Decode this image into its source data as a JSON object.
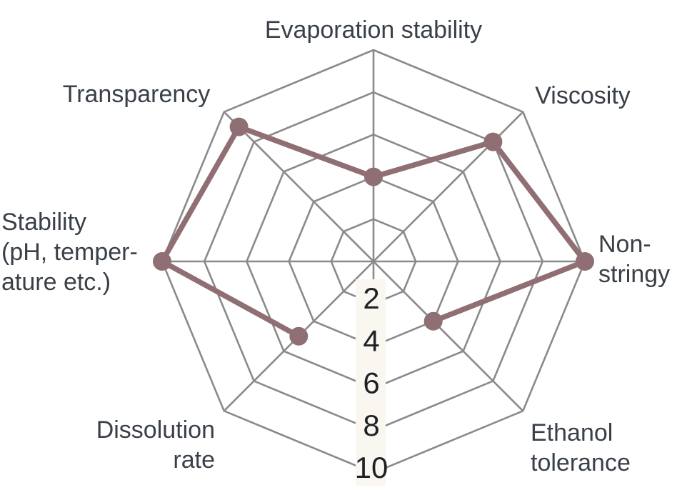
{
  "chart_data": {
    "type": "radar",
    "title": "",
    "axis_count": 8,
    "scale": {
      "min": 0,
      "max": 10,
      "ring_step": 2,
      "rings": [
        2,
        4,
        6,
        8,
        10
      ],
      "tick_labels": [
        "2",
        "4",
        "6",
        "8",
        "10"
      ],
      "tick_axis_position": "bottom"
    },
    "axes": [
      {
        "id": "evaporation-stability",
        "label_lines": [
          "Evaporation stability"
        ],
        "value": 4
      },
      {
        "id": "viscosity",
        "label_lines": [
          "Viscosity"
        ],
        "value": 8
      },
      {
        "id": "non-stringy",
        "label_lines": [
          "Non-",
          "stringy"
        ],
        "value": 10
      },
      {
        "id": "ethanol-tolerance",
        "label_lines": [
          "Ethanol",
          "tolerance"
        ],
        "value": 4
      },
      {
        "id": "scale-axis",
        "label_lines": [],
        "value": null
      },
      {
        "id": "dissolution-rate",
        "label_lines": [
          "Dissolution",
          "rate"
        ],
        "value": 5
      },
      {
        "id": "stability",
        "label_lines": [
          "Stability",
          "(pH, temper-",
          "ature etc.)"
        ],
        "value": 10
      },
      {
        "id": "transparency",
        "label_lines": [
          "Transparency"
        ],
        "value": 9
      }
    ],
    "series": [
      {
        "name": "product-properties",
        "values_by_axis": {
          "evaporation-stability": 4,
          "viscosity": 8,
          "non-stringy": 10,
          "ethanol-tolerance": 4,
          "dissolution-rate": 5,
          "stability": 10,
          "transparency": 9
        },
        "polyline_axis_order": [
          "ethanol-tolerance",
          "non-stringy",
          "viscosity",
          "evaporation-stability",
          "transparency",
          "stability",
          "dissolution-rate"
        ],
        "closed": false
      }
    ],
    "legend": null,
    "grid": true,
    "colors": {
      "series": "#906f74",
      "grid": "#8a8a8a",
      "axis_label_text": "#3a4047",
      "tick_text": "#1e2126",
      "tick_band": "#faf7f0",
      "background": "#ffffff"
    }
  }
}
